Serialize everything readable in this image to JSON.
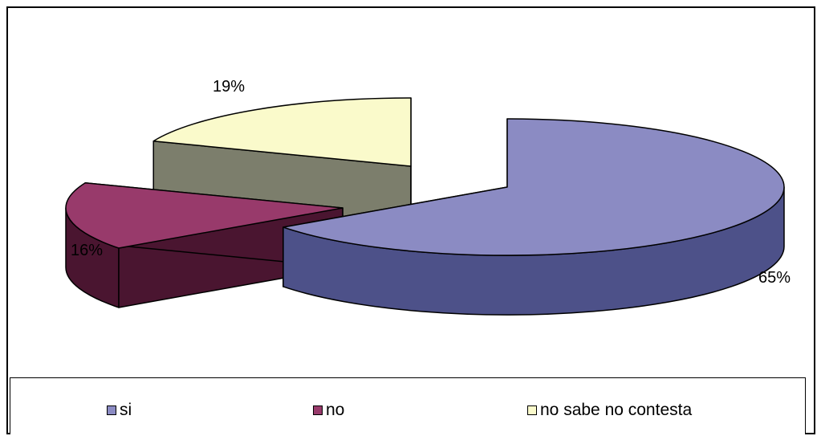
{
  "chart_data": {
    "type": "pie",
    "title": "",
    "series": [
      {
        "name": "si",
        "value": 65,
        "label": "65%",
        "color": "#8B8BC3",
        "side_color": "#4D5189"
      },
      {
        "name": "no",
        "value": 16,
        "label": "16%",
        "color": "#983A6B",
        "side_color": "#4A1530"
      },
      {
        "name": "no sabe no contesta",
        "value": 19,
        "label": "19%",
        "color": "#FAFACB",
        "side_color": "#7C7E6C"
      }
    ],
    "exploded": true,
    "three_d": true,
    "legend_position": "bottom"
  }
}
